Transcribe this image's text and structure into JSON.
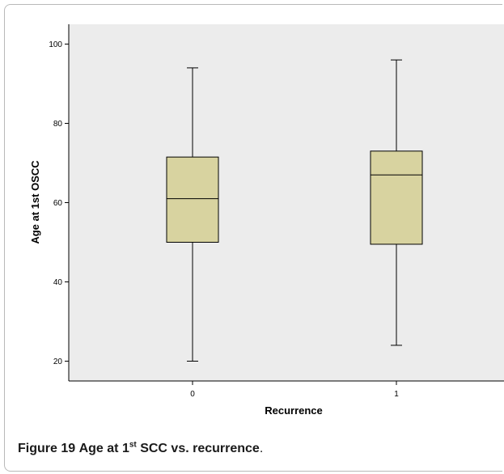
{
  "chart_data": {
    "type": "box",
    "xlabel": "Recurrence",
    "ylabel": "Age at 1st OSCC",
    "ylim": [
      15,
      105
    ],
    "yticks": [
      20,
      40,
      60,
      80,
      100
    ],
    "grid": false,
    "box_fill": "#d8d3a0",
    "plot_background": "#ececec",
    "groups": [
      {
        "category": "0",
        "min": 20,
        "q1": 50,
        "median": 61,
        "q3": 71.5,
        "max": 94
      },
      {
        "category": "1",
        "min": 24,
        "q1": 49.5,
        "median": 67,
        "q3": 73,
        "max": 96
      }
    ]
  },
  "caption": {
    "label": "Figure 19",
    "text_before": "Age at 1",
    "superscript": "st",
    "text_after": " SCC vs. recurrence",
    "end": "."
  }
}
